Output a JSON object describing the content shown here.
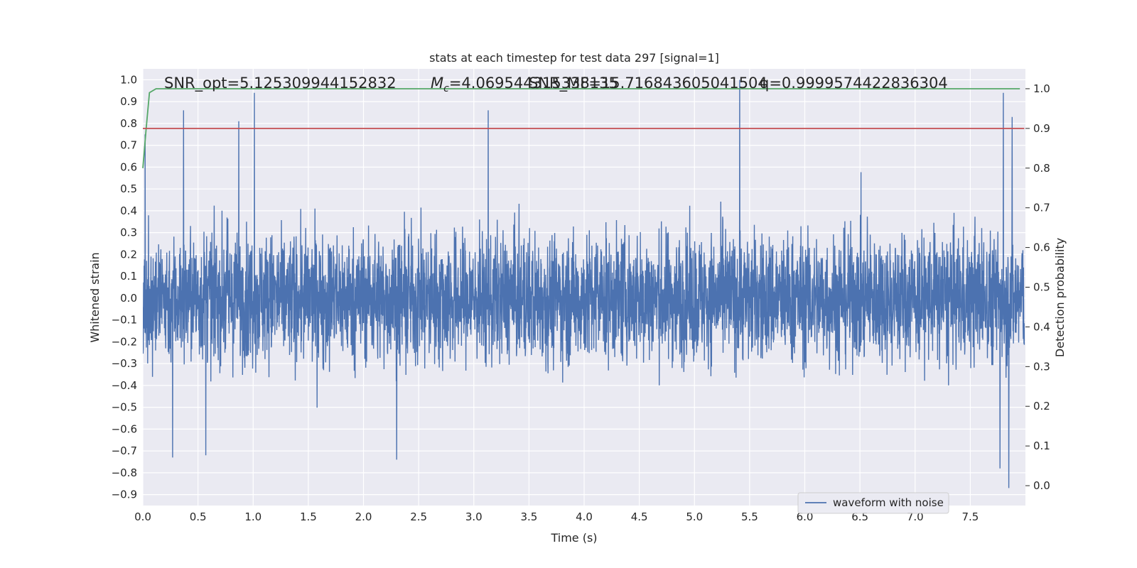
{
  "chart_data": {
    "type": "line",
    "title": "stats at each timestep for test data 297 [signal=1]",
    "xlabel": "Time (s)",
    "ylabel": "Whitened strain",
    "y2label": "Detection probability",
    "xlim": [
      0.0,
      8.0
    ],
    "ylim": [
      -0.95,
      1.05
    ],
    "y2lim": [
      -0.05,
      1.05
    ],
    "xticks": [
      "0.0",
      "0.5",
      "1.0",
      "1.5",
      "2.0",
      "2.5",
      "3.0",
      "3.5",
      "4.0",
      "4.5",
      "5.0",
      "5.5",
      "6.0",
      "6.5",
      "7.0",
      "7.5"
    ],
    "yticks": [
      "−0.9",
      "−0.8",
      "−0.7",
      "−0.6",
      "−0.5",
      "−0.4",
      "−0.3",
      "−0.2",
      "−0.1",
      "0.0",
      "0.1",
      "0.2",
      "0.3",
      "0.4",
      "0.5",
      "0.6",
      "0.7",
      "0.8",
      "0.9",
      "1.0"
    ],
    "y2ticks": [
      "0.0",
      "0.1",
      "0.2",
      "0.3",
      "0.4",
      "0.5",
      "0.6",
      "0.7",
      "0.8",
      "0.9",
      "1.0"
    ],
    "grid": true,
    "legend_position": "lower-right",
    "annotations": {
      "snr_opt": "SNR_opt=5.125309944152832",
      "mc_prefix": "M",
      "mc_subscript": "c",
      "mc_value": "=4.069544315338135",
      "snr_mf": "SNR_MF=15.716843605041504",
      "q": "q=0.9999574422836304"
    },
    "series": [
      {
        "name": "waveform with noise",
        "axis": "left",
        "color": "#4c72b0",
        "description_points": {
          "x_range": [
            0.0,
            7.99
          ],
          "typical_envelope": [
            -0.5,
            0.55
          ],
          "peaks": [
            {
              "x": 0.02,
              "y": 0.75
            },
            {
              "x": 0.37,
              "y": 0.86
            },
            {
              "x": 0.87,
              "y": 0.81
            },
            {
              "x": 1.01,
              "y": 0.94
            },
            {
              "x": 3.13,
              "y": 0.86
            },
            {
              "x": 5.41,
              "y": 1.0
            },
            {
              "x": 7.8,
              "y": 0.94
            },
            {
              "x": 7.88,
              "y": 0.83
            }
          ],
          "troughs": [
            {
              "x": 0.27,
              "y": -0.73
            },
            {
              "x": 0.57,
              "y": -0.72
            },
            {
              "x": 2.3,
              "y": -0.74
            },
            {
              "x": 7.77,
              "y": -0.78
            },
            {
              "x": 7.85,
              "y": -0.87
            }
          ]
        }
      },
      {
        "name": "",
        "axis": "right",
        "color": "#55a868",
        "x": [
          0.0,
          0.03,
          0.06,
          0.12,
          7.95
        ],
        "y": [
          0.8,
          0.9,
          0.99,
          1.0,
          1.0
        ]
      },
      {
        "name": "",
        "axis": "right",
        "color": "#c44e52",
        "x": [
          0.0,
          7.99
        ],
        "y": [
          0.9,
          0.9
        ]
      }
    ]
  },
  "colors": {
    "plot_background": "#eaeaf2",
    "grid": "#ffffff",
    "waveform": "#4c72b0",
    "probability": "#55a868",
    "threshold": "#c44e52"
  }
}
